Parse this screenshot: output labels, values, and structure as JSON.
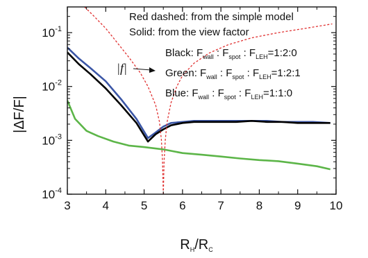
{
  "chart_data": {
    "type": "line",
    "xlabel": {
      "main": "R",
      "sub1": "H",
      "slash": "/R",
      "sub2": "C"
    },
    "ylabel": "|ΔF/F|",
    "xlim": [
      3,
      10
    ],
    "ylim": [
      0.0001,
      0.3
    ],
    "yscale": "log",
    "xticks": [
      3,
      4,
      5,
      6,
      7,
      8,
      9,
      10
    ],
    "xtick_labels": [
      "3",
      "4",
      "5",
      "6",
      "7",
      "8",
      "9",
      "10"
    ],
    "yticks": [
      0.0001,
      0.001,
      0.01,
      0.1
    ],
    "ytick_labels": [
      {
        "base": "10",
        "exp": "-4"
      },
      {
        "base": "10",
        "exp": "-3"
      },
      {
        "base": "10",
        "exp": "-2"
      },
      {
        "base": "10",
        "exp": "-1"
      }
    ],
    "legend_lines": [
      "Red dashed: from the simple model",
      "Solid: from the view factor"
    ],
    "ratio_labels": [
      {
        "color_name": "Black",
        "ratio": "1:2:0"
      },
      {
        "color_name": "Green",
        "ratio": "1:2:1"
      },
      {
        "color_name": "Blue",
        "ratio": "1:1:0"
      }
    ],
    "ratio_terms": [
      {
        "F": "F",
        "sub": "wall"
      },
      {
        "F": "F",
        "sub": "spot"
      },
      {
        "F": "F",
        "sub": "LEH"
      }
    ],
    "arrow_label": "|f|",
    "series": [
      {
        "key": "blue",
        "color": "#3b56a6",
        "style": "solid",
        "x": [
          3.0,
          3.3,
          3.6,
          4.0,
          4.4,
          4.8,
          5.1,
          5.3,
          5.5,
          5.7,
          6.0,
          6.3,
          6.6,
          7.0,
          7.4,
          7.8,
          8.2,
          8.6,
          9.0,
          9.4,
          9.85
        ],
        "y": [
          0.053,
          0.033,
          0.022,
          0.0125,
          0.0058,
          0.0025,
          0.0011,
          0.0014,
          0.0018,
          0.0021,
          0.0022,
          0.0023,
          0.0023,
          0.0023,
          0.0023,
          0.0023,
          0.0023,
          0.0022,
          0.0022,
          0.0022,
          0.0021
        ]
      },
      {
        "key": "black",
        "color": "#000000",
        "style": "solid",
        "x": [
          3.0,
          3.3,
          3.6,
          4.0,
          4.4,
          4.8,
          5.1,
          5.3,
          5.5,
          5.7,
          6.0,
          6.3,
          6.6,
          7.0,
          7.4,
          7.8,
          8.2,
          8.6,
          9.0,
          9.4,
          9.85
        ],
        "y": [
          0.043,
          0.026,
          0.017,
          0.0092,
          0.0045,
          0.0021,
          0.00095,
          0.0013,
          0.0016,
          0.0019,
          0.0021,
          0.0022,
          0.0022,
          0.0022,
          0.0022,
          0.0023,
          0.0022,
          0.0022,
          0.0021,
          0.0021,
          0.0021
        ]
      },
      {
        "key": "green",
        "color": "#5cb548",
        "style": "solid",
        "x": [
          3.0,
          3.2,
          3.5,
          3.8,
          4.2,
          4.6,
          5.0,
          5.5,
          6.0,
          6.5,
          7.0,
          7.5,
          8.0,
          8.5,
          9.0,
          9.5,
          9.85
        ],
        "y": [
          0.0055,
          0.0025,
          0.0015,
          0.0012,
          0.00095,
          0.0008,
          0.00075,
          0.00068,
          0.00058,
          0.00054,
          0.0005,
          0.00046,
          0.00043,
          0.00041,
          0.00037,
          0.00033,
          0.00029
        ]
      },
      {
        "key": "red-left",
        "color": "#e03030",
        "style": "dashed",
        "x": [
          3.45,
          3.7,
          4.0,
          4.3,
          4.6,
          4.9,
          5.1,
          5.3,
          5.4,
          5.45,
          5.48,
          5.5
        ],
        "y": [
          0.3,
          0.2,
          0.12,
          0.065,
          0.035,
          0.018,
          0.01,
          0.0045,
          0.0022,
          0.001,
          0.0004,
          0.0001
        ]
      },
      {
        "key": "red-right",
        "color": "#e03030",
        "style": "dashed",
        "x": [
          5.5,
          5.52,
          5.55,
          5.6,
          5.7,
          5.85,
          6.0,
          6.3,
          6.7,
          7.2,
          7.8,
          8.5,
          9.2,
          9.9
        ],
        "y": [
          0.0001,
          0.0004,
          0.001,
          0.0022,
          0.005,
          0.01,
          0.016,
          0.027,
          0.042,
          0.06,
          0.08,
          0.1,
          0.12,
          0.145
        ]
      }
    ]
  }
}
